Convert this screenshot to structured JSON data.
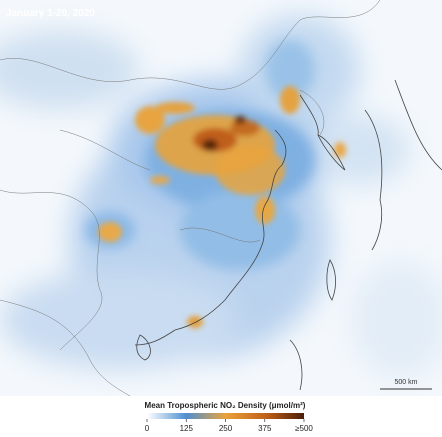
{
  "map": {
    "title": "January 1-20, 2020",
    "scale_bar": {
      "label": "500 km"
    },
    "legend": {
      "title": "Mean Tropospheric NO₂ Density (μmol/m²)",
      "lim": [
        0,
        500
      ],
      "ticks": [
        0,
        125,
        250,
        375,
        {
          "value": 500,
          "label": "≥500"
        }
      ],
      "colormap": [
        "#ffffff",
        "#4f8fd0",
        "#e9a23b",
        "#c4621a",
        "#4a1e08"
      ]
    }
  }
}
